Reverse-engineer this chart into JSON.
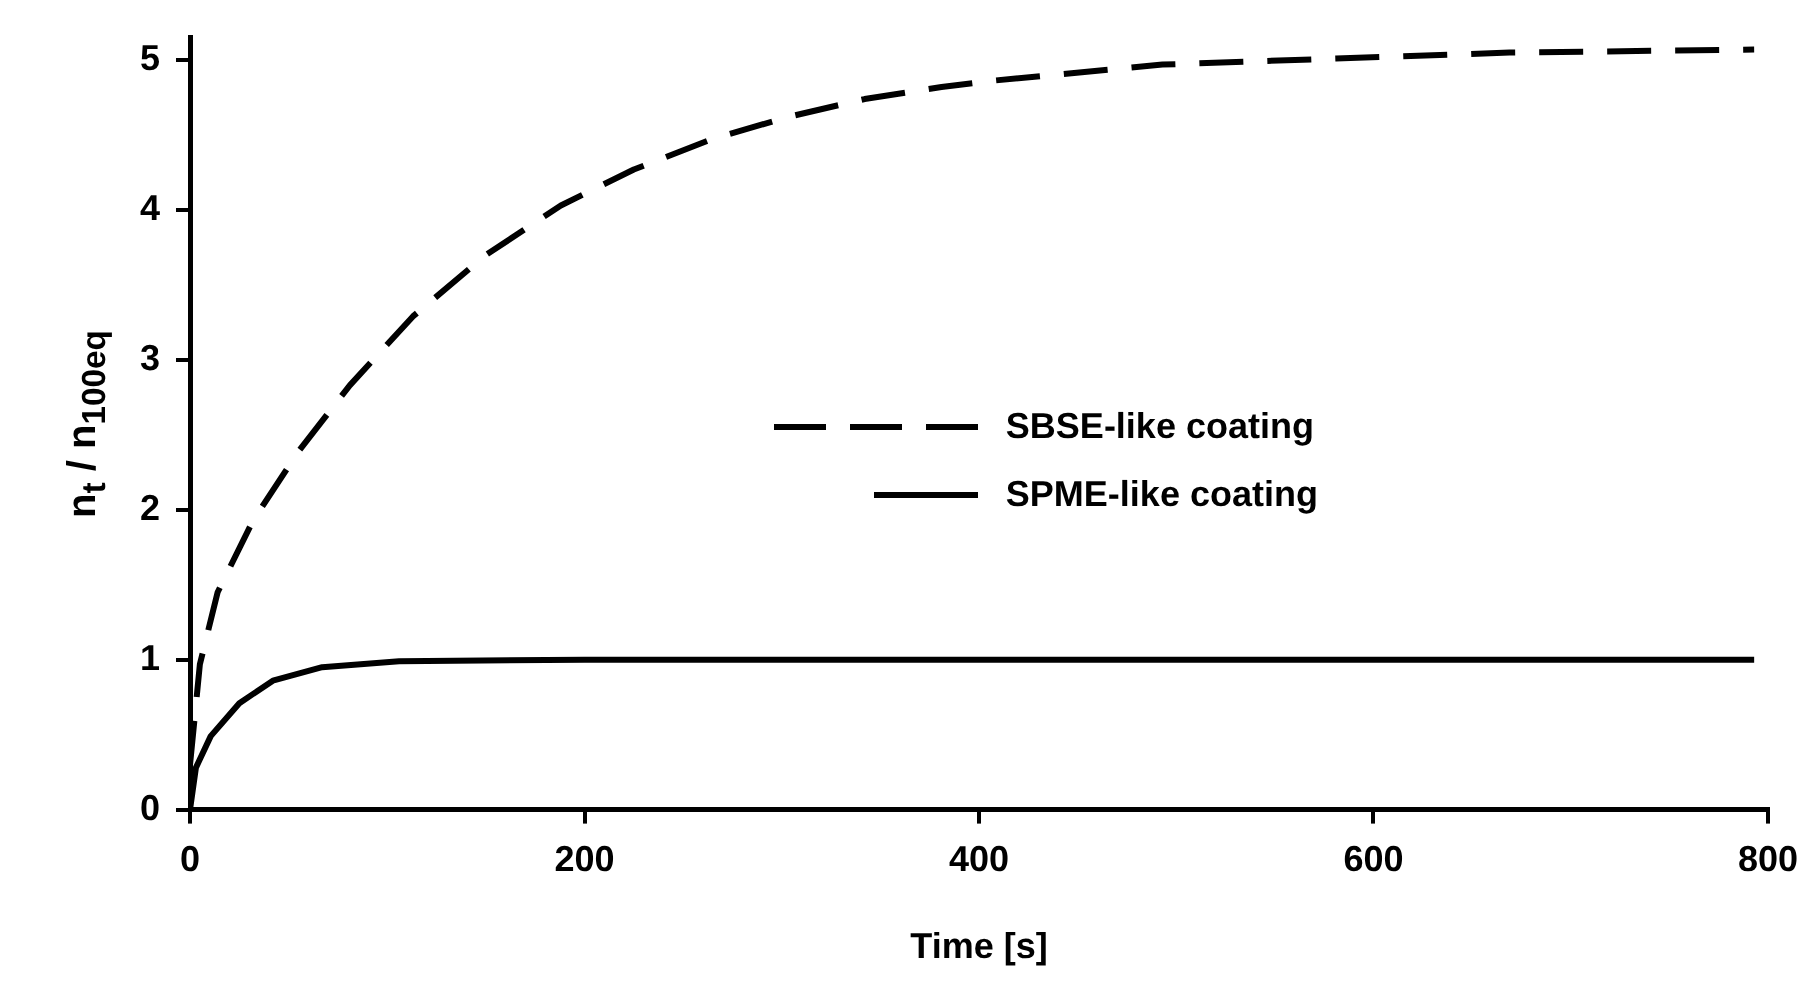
{
  "chart_data": {
    "type": "line",
    "xlabel": "Time [s]",
    "ylabel": "n$_{t}$ / n$_{100}$$_{eq}$",
    "xlim": [
      0,
      800
    ],
    "xticks": [
      0,
      200,
      400,
      600,
      800
    ],
    "ylim": [
      0,
      5.15
    ],
    "yticks": [
      0,
      1,
      2,
      3,
      4,
      5
    ],
    "grid": false,
    "legend": "right",
    "marker": "none",
    "series": [
      {
        "name": "SBSE-like coating",
        "color": "#000000",
        "line_style": "dashed",
        "x": [
          0,
          3,
          5,
          14,
          32,
          55,
          81,
          113,
          150,
          188,
          225,
          264,
          303,
          342,
          381,
          405,
          493,
          581,
          669,
          793
        ],
        "values": [
          0.3,
          0.7,
          0.97,
          1.45,
          1.93,
          2.39,
          2.83,
          3.29,
          3.7,
          4.03,
          4.27,
          4.47,
          4.62,
          4.74,
          4.82,
          4.86,
          4.97,
          5.01,
          5.05,
          5.07
        ]
      },
      {
        "name": "SPME-like coating",
        "color": "#000000",
        "line_style": "solid",
        "x": [
          0,
          3,
          10.5,
          25,
          42,
          67,
          106,
          200,
          400,
          600,
          793
        ],
        "values": [
          0,
          0.28,
          0.49,
          0.71,
          0.86,
          0.95,
          0.99,
          1,
          1,
          1,
          1
        ]
      }
    ]
  }
}
